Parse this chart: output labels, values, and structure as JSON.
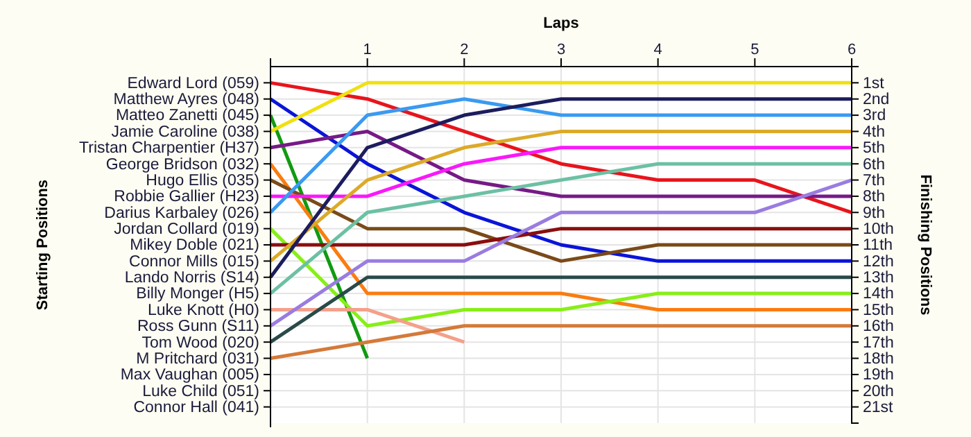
{
  "chart_data": {
    "type": "line",
    "xlabel": "Laps",
    "annotations": [
      "Starting Positions"
    ],
    "y2label": "Finishing Positions",
    "xlim": [
      0,
      6
    ],
    "xticks": [
      1,
      2,
      3,
      4,
      5,
      6
    ],
    "y_categories": [
      "Edward Lord (059)",
      "Matthew Ayres (048)",
      "Matteo Zanetti (045)",
      "Jamie Caroline (038)",
      "Tristan Charpentier (H37)",
      "George Bridson (032)",
      "Hugo Ellis (035)",
      "Robbie Gallier (H23)",
      "Darius Karbaley (026)",
      "Jordan Collard (019)",
      "Mikey Doble (021)",
      "Connor Mills (015)",
      "Lando Norris (S14)",
      "Billy Monger (H5)",
      "Luke Knott (H0)",
      "Ross Gunn (S11)",
      "Tom Wood (020)",
      "M Pritchard (031)",
      "Max Vaughan (005)",
      "Luke Child (051)",
      "Connor Hall (041)"
    ],
    "y2lim": [
      22,
      0
    ],
    "y2ticks": [
      {
        "value": 1,
        "label": "1st"
      },
      {
        "value": 2,
        "label": "2nd"
      },
      {
        "value": 3,
        "label": "3rd"
      },
      {
        "value": 4,
        "label": "4th"
      },
      {
        "value": 5,
        "label": "5th"
      },
      {
        "value": 6,
        "label": "6th"
      },
      {
        "value": 7,
        "label": "7th"
      },
      {
        "value": 8,
        "label": "8th"
      },
      {
        "value": 9,
        "label": "9th"
      },
      {
        "value": 10,
        "label": "10th"
      },
      {
        "value": 11,
        "label": "11th"
      },
      {
        "value": 12,
        "label": "12th"
      },
      {
        "value": 13,
        "label": "13th"
      },
      {
        "value": 14,
        "label": "14th"
      },
      {
        "value": 15,
        "label": "15th"
      },
      {
        "value": 16,
        "label": "16th"
      },
      {
        "value": 17,
        "label": "17th"
      },
      {
        "value": 18,
        "label": "18th"
      },
      {
        "value": 19,
        "label": "19th"
      },
      {
        "value": 20,
        "label": "20th"
      },
      {
        "value": 21,
        "label": "21st"
      }
    ],
    "x": [
      0,
      1,
      2,
      3,
      4,
      5,
      6
    ],
    "grid": true,
    "marker": "none",
    "line_style": "solid",
    "series": [
      {
        "axis": "y2",
        "color": "#e8141c",
        "values": [
          1,
          2,
          4,
          6,
          7,
          7,
          9
        ]
      },
      {
        "axis": "y2",
        "color": "#0a14d8",
        "values": [
          2,
          6,
          9,
          11,
          12,
          12,
          12
        ]
      },
      {
        "axis": "y2",
        "color": "#109a10",
        "values": [
          3,
          18,
          null,
          null,
          null,
          null,
          null
        ]
      },
      {
        "axis": "y2",
        "color": "#f0e010",
        "values": [
          4,
          1,
          1,
          1,
          1,
          1,
          1
        ]
      },
      {
        "axis": "y2",
        "color": "#761a86",
        "values": [
          5,
          4,
          7,
          8,
          8,
          8,
          8
        ]
      },
      {
        "axis": "y2",
        "color": "#fa7c10",
        "values": [
          6,
          14,
          14,
          14,
          15,
          15,
          15
        ]
      },
      {
        "axis": "y2",
        "color": "#7a4a18",
        "values": [
          7,
          10,
          10,
          12,
          11,
          11,
          11
        ]
      },
      {
        "axis": "y2",
        "color": "#fa18fa",
        "values": [
          8,
          8,
          6,
          5,
          5,
          5,
          5
        ]
      },
      {
        "axis": "y2",
        "color": "#3a9af0",
        "values": [
          9,
          3,
          2,
          3,
          3,
          3,
          3
        ]
      },
      {
        "axis": "y2",
        "color": "#88ee18",
        "values": [
          10,
          16,
          15,
          15,
          14,
          14,
          14
        ]
      },
      {
        "axis": "y2",
        "color": "#8a0e0e",
        "values": [
          11,
          11,
          11,
          10,
          10,
          10,
          10
        ]
      },
      {
        "axis": "y2",
        "color": "#dcaa28",
        "values": [
          12,
          7,
          5,
          4,
          4,
          4,
          4
        ]
      },
      {
        "axis": "y2",
        "color": "#1c1c5e",
        "values": [
          13,
          5,
          3,
          2,
          2,
          2,
          2
        ]
      },
      {
        "axis": "y2",
        "color": "#6cc0a4",
        "values": [
          14,
          9,
          8,
          7,
          6,
          6,
          6
        ]
      },
      {
        "axis": "y2",
        "color": "#f4a08a",
        "values": [
          15,
          15,
          17,
          null,
          null,
          null,
          null
        ]
      },
      {
        "axis": "y2",
        "color": "#9a7ce0",
        "values": [
          16,
          12,
          12,
          9,
          9,
          9,
          7
        ]
      },
      {
        "axis": "y2",
        "color": "#2a4a4a",
        "values": [
          17,
          13,
          13,
          13,
          13,
          13,
          13
        ]
      },
      {
        "axis": "y2",
        "color": "#d47a3a",
        "values": [
          18,
          17,
          16,
          16,
          16,
          16,
          16
        ]
      }
    ]
  }
}
